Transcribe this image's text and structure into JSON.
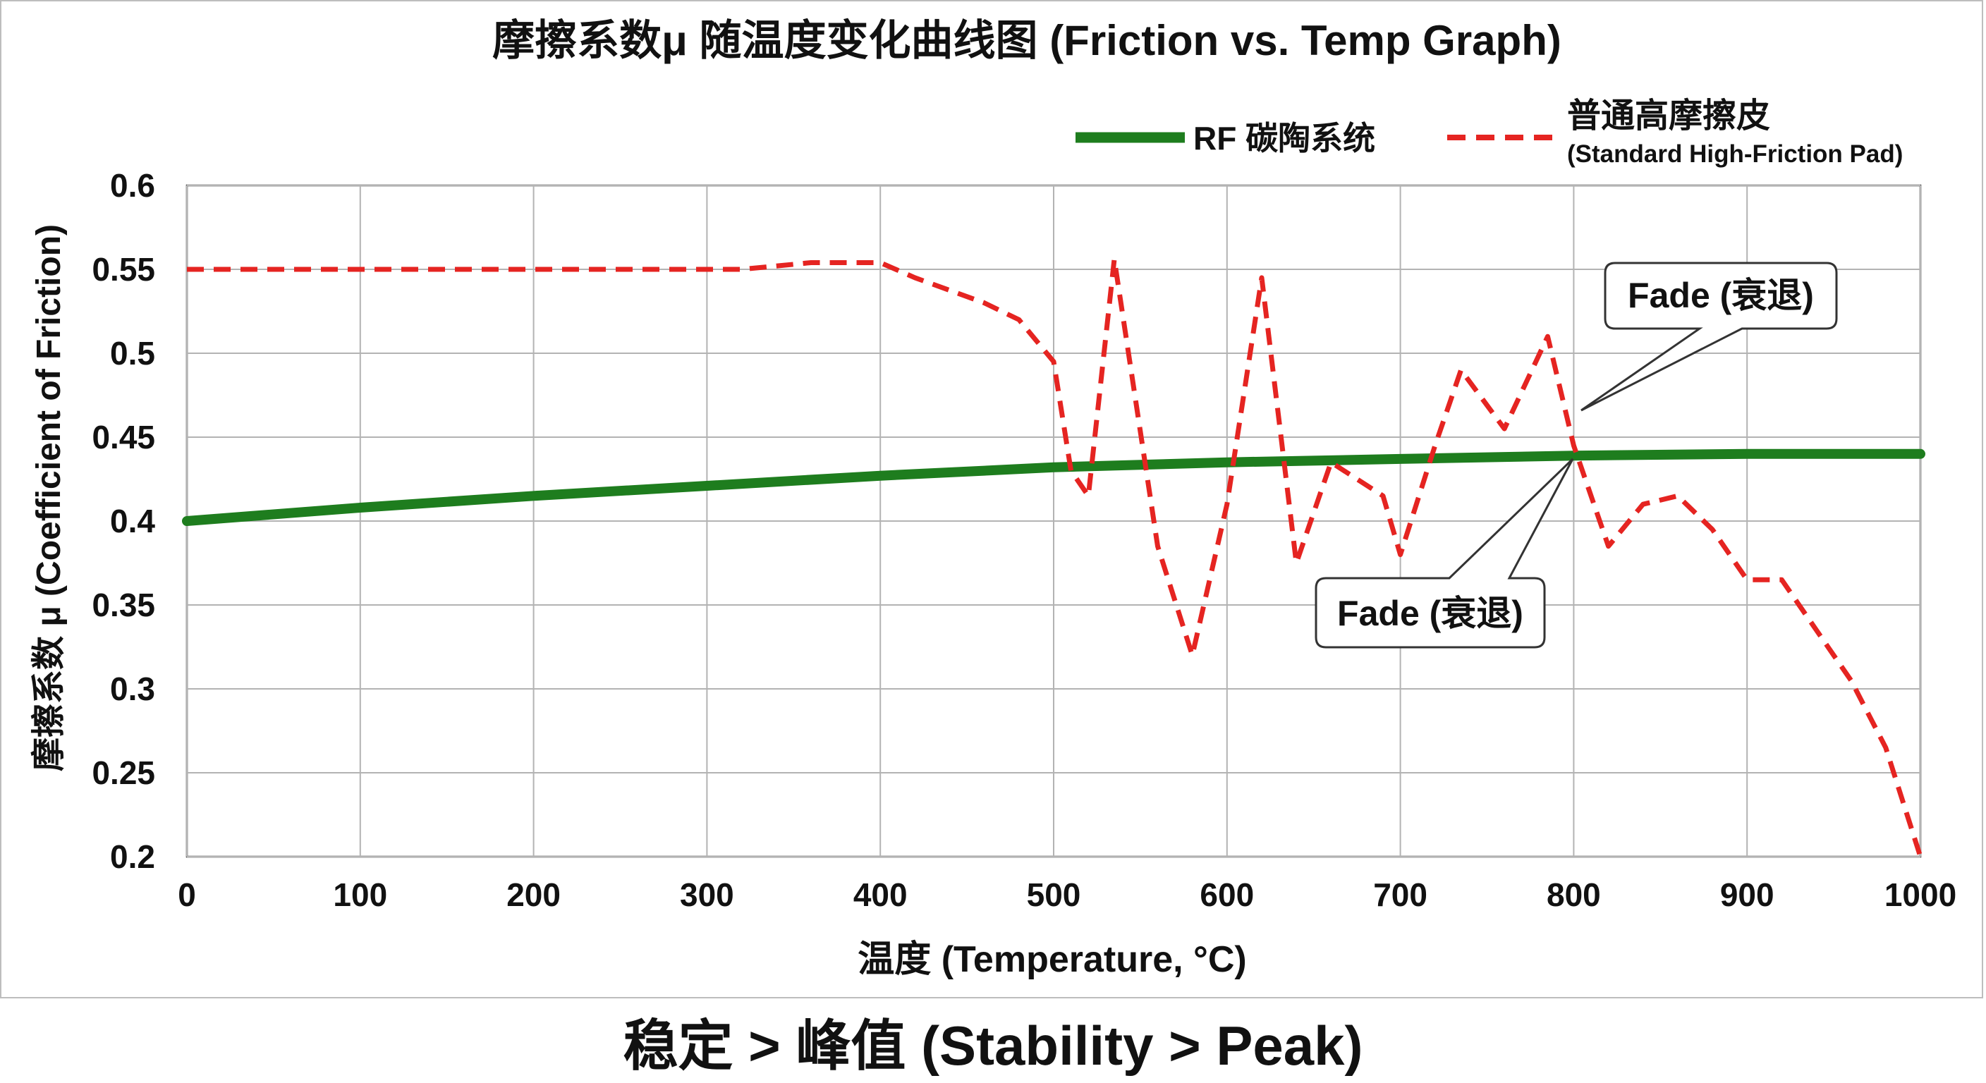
{
  "chart_data": {
    "type": "line",
    "title": "摩擦系数μ 随温度变化曲线图 (Friction vs. Temp Graph)",
    "xlabel": "温度 (Temperature, °C)",
    "ylabel": "摩擦系数 μ (Coefficient of Friction)",
    "xlim": [
      0,
      1000
    ],
    "ylim": [
      0.2,
      0.6
    ],
    "x_ticks": [
      0,
      100,
      200,
      300,
      400,
      500,
      600,
      700,
      800,
      900,
      1000
    ],
    "x_tick_labels": [
      "0",
      "100",
      "200",
      "300",
      "400",
      "500",
      "600",
      "700",
      "800",
      "900",
      "1000"
    ],
    "y_ticks": [
      0.6,
      0.55,
      0.5,
      0.45,
      0.4,
      0.35,
      0.3,
      0.25,
      0.2
    ],
    "y_tick_labels": [
      "0.6",
      "0.55",
      "0.5",
      "0.45",
      "0.4",
      "0.35",
      "0.3",
      "0.25",
      "0.2"
    ],
    "grid": true,
    "legend_position": "top-right",
    "series": [
      {
        "name": "RF 碳陶系统",
        "label": "RF 碳陶系统",
        "color": "#1e7d1e",
        "style": "solid",
        "x": [
          0,
          100,
          200,
          300,
          400,
          500,
          600,
          700,
          800,
          900,
          1000
        ],
        "y": [
          0.4,
          0.408,
          0.415,
          0.421,
          0.427,
          0.432,
          0.435,
          0.437,
          0.439,
          0.44,
          0.44
        ]
      },
      {
        "name": "普通高摩擦皮 (Standard High-Friction Pad)",
        "label": "普通高摩擦皮",
        "sublabel": "(Standard High-Friction Pad)",
        "color": "#e52421",
        "style": "dashed",
        "x": [
          0,
          100,
          200,
          300,
          320,
          360,
          400,
          420,
          460,
          480,
          500,
          510,
          520,
          535,
          560,
          580,
          600,
          620,
          640,
          660,
          690,
          700,
          720,
          735,
          760,
          785,
          800,
          820,
          840,
          860,
          880,
          900,
          920,
          940,
          960,
          980,
          1000
        ],
        "y": [
          0.55,
          0.55,
          0.55,
          0.55,
          0.55,
          0.554,
          0.554,
          0.545,
          0.53,
          0.52,
          0.495,
          0.43,
          0.415,
          0.556,
          0.385,
          0.32,
          0.41,
          0.545,
          0.375,
          0.435,
          0.415,
          0.38,
          0.445,
          0.49,
          0.455,
          0.51,
          0.445,
          0.385,
          0.41,
          0.415,
          0.395,
          0.365,
          0.365,
          0.335,
          0.305,
          0.265,
          0.2
        ]
      }
    ],
    "annotations": [
      {
        "text": "Fade (衰退)",
        "x": 805,
        "y": 0.463,
        "placement": "above-right"
      },
      {
        "text": "Fade (衰退)",
        "x": 808,
        "y": 0.44,
        "placement": "below-left"
      }
    ]
  },
  "caption": "稳定 > 峰值 (Stability > Peak)",
  "colors": {
    "grid": "#b3b3b3",
    "axis": "#333333",
    "callout_border": "#333333"
  }
}
